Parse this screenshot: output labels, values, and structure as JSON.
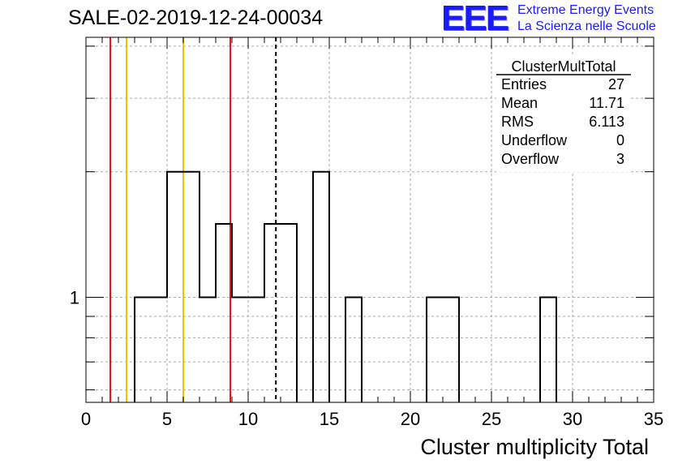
{
  "header": {
    "title": "SALE-02-2019-12-24-00034"
  },
  "logo": {
    "mark": "EEE",
    "line1": "Extreme Energy Events",
    "line2": "La Scienza nelle Scuole",
    "color": "#1a1aff"
  },
  "chart_data": {
    "type": "histogram",
    "xlabel": "Cluster multiplicity Total",
    "ylabel": "",
    "xlim": [
      0,
      35
    ],
    "y_scale": "log",
    "ylim": [
      0.56,
      4.2
    ],
    "x_ticks": [
      0,
      5,
      10,
      15,
      20,
      25,
      30,
      35
    ],
    "y_ticks": [
      1
    ],
    "grid": true,
    "bin_width": 1,
    "bins": [
      {
        "low": 3,
        "high": 4,
        "count": 1
      },
      {
        "low": 4,
        "high": 5,
        "count": 1
      },
      {
        "low": 5,
        "high": 6,
        "count": 2
      },
      {
        "low": 6,
        "high": 7,
        "count": 2
      },
      {
        "low": 7,
        "high": 8,
        "count": 1
      },
      {
        "low": 8,
        "high": 9,
        "count": 1.5
      },
      {
        "low": 9,
        "high": 10,
        "count": 1
      },
      {
        "low": 10,
        "high": 11,
        "count": 1
      },
      {
        "low": 11,
        "high": 12,
        "count": 1.5
      },
      {
        "low": 12,
        "high": 13,
        "count": 1.5
      },
      {
        "low": 14,
        "high": 15,
        "count": 2
      },
      {
        "low": 16,
        "high": 17,
        "count": 1
      },
      {
        "low": 21,
        "high": 22,
        "count": 1
      },
      {
        "low": 22,
        "high": 23,
        "count": 1
      },
      {
        "low": 28,
        "high": 29,
        "count": 1
      }
    ],
    "vertical_lines": [
      {
        "x": 1.5,
        "color": "#e8141e",
        "style": "solid"
      },
      {
        "x": 2.5,
        "color": "#f2c200",
        "style": "solid"
      },
      {
        "x": 6.0,
        "color": "#f2c200",
        "style": "solid"
      },
      {
        "x": 8.9,
        "color": "#e8141e",
        "style": "solid"
      },
      {
        "x": 11.71,
        "color": "#000000",
        "style": "dashed"
      }
    ],
    "stats_box": {
      "title": "ClusterMultTotal",
      "rows": [
        {
          "label": "Entries",
          "value": "27"
        },
        {
          "label": "Mean",
          "value": "11.71"
        },
        {
          "label": "RMS",
          "value": "6.113"
        },
        {
          "label": "Underflow",
          "value": "0"
        },
        {
          "label": "Overflow",
          "value": "3"
        }
      ]
    }
  }
}
